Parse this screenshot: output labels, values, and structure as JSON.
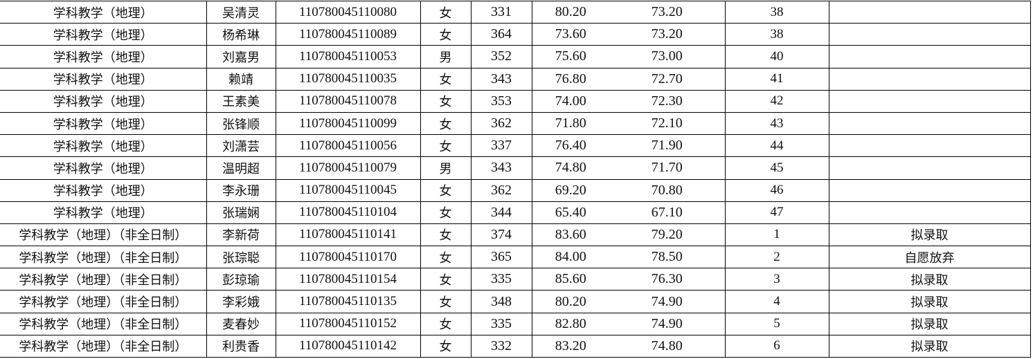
{
  "rows": [
    {
      "major": "学科教学（地理）",
      "name": "吴清灵",
      "id": "110780045110080",
      "gender": "女",
      "exam": "331",
      "retest": "80.20",
      "total": "73.20",
      "rank": "38",
      "remark": ""
    },
    {
      "major": "学科教学（地理）",
      "name": "杨希琳",
      "id": "110780045110089",
      "gender": "女",
      "exam": "364",
      "retest": "73.60",
      "total": "73.20",
      "rank": "38",
      "remark": ""
    },
    {
      "major": "学科教学（地理）",
      "name": "刘嘉男",
      "id": "110780045110053",
      "gender": "男",
      "exam": "352",
      "retest": "75.60",
      "total": "73.00",
      "rank": "40",
      "remark": ""
    },
    {
      "major": "学科教学（地理）",
      "name": "赖靖",
      "id": "110780045110035",
      "gender": "女",
      "exam": "343",
      "retest": "76.80",
      "total": "72.70",
      "rank": "41",
      "remark": ""
    },
    {
      "major": "学科教学（地理）",
      "name": "王素美",
      "id": "110780045110078",
      "gender": "女",
      "exam": "353",
      "retest": "74.00",
      "total": "72.30",
      "rank": "42",
      "remark": ""
    },
    {
      "major": "学科教学（地理）",
      "name": "张锋顺",
      "id": "110780045110099",
      "gender": "女",
      "exam": "362",
      "retest": "71.80",
      "total": "72.10",
      "rank": "43",
      "remark": ""
    },
    {
      "major": "学科教学（地理）",
      "name": "刘潇芸",
      "id": "110780045110056",
      "gender": "女",
      "exam": "337",
      "retest": "76.40",
      "total": "71.90",
      "rank": "44",
      "remark": ""
    },
    {
      "major": "学科教学（地理）",
      "name": "温明超",
      "id": "110780045110079",
      "gender": "男",
      "exam": "343",
      "retest": "74.80",
      "total": "71.70",
      "rank": "45",
      "remark": ""
    },
    {
      "major": "学科教学（地理）",
      "name": "李永珊",
      "id": "110780045110045",
      "gender": "女",
      "exam": "362",
      "retest": "69.20",
      "total": "70.80",
      "rank": "46",
      "remark": ""
    },
    {
      "major": "学科教学（地理）",
      "name": "张瑞娴",
      "id": "110780045110104",
      "gender": "女",
      "exam": "344",
      "retest": "65.40",
      "total": "67.10",
      "rank": "47",
      "remark": ""
    },
    {
      "major": "学科教学（地理）（非全日制）",
      "name": "李新荷",
      "id": "110780045110141",
      "gender": "女",
      "exam": "374",
      "retest": "83.60",
      "total": "79.20",
      "rank": "1",
      "remark": "拟录取"
    },
    {
      "major": "学科教学（地理）（非全日制）",
      "name": "张琮聪",
      "id": "110780045110170",
      "gender": "女",
      "exam": "365",
      "retest": "84.00",
      "total": "78.50",
      "rank": "2",
      "remark": "自愿放弃"
    },
    {
      "major": "学科教学（地理）（非全日制）",
      "name": "彭琼瑜",
      "id": "110780045110154",
      "gender": "女",
      "exam": "335",
      "retest": "85.60",
      "total": "76.30",
      "rank": "3",
      "remark": "拟录取"
    },
    {
      "major": "学科教学（地理）（非全日制）",
      "name": "李彩娥",
      "id": "110780045110135",
      "gender": "女",
      "exam": "348",
      "retest": "80.20",
      "total": "74.90",
      "rank": "4",
      "remark": "拟录取"
    },
    {
      "major": "学科教学（地理）（非全日制）",
      "name": "麦春妙",
      "id": "110780045110152",
      "gender": "女",
      "exam": "335",
      "retest": "82.80",
      "total": "74.90",
      "rank": "5",
      "remark": "拟录取"
    },
    {
      "major": "学科教学（地理）（非全日制）",
      "name": "利贵香",
      "id": "110780045110142",
      "gender": "女",
      "exam": "332",
      "retest": "83.20",
      "total": "74.80",
      "rank": "6",
      "remark": "拟录取"
    }
  ]
}
